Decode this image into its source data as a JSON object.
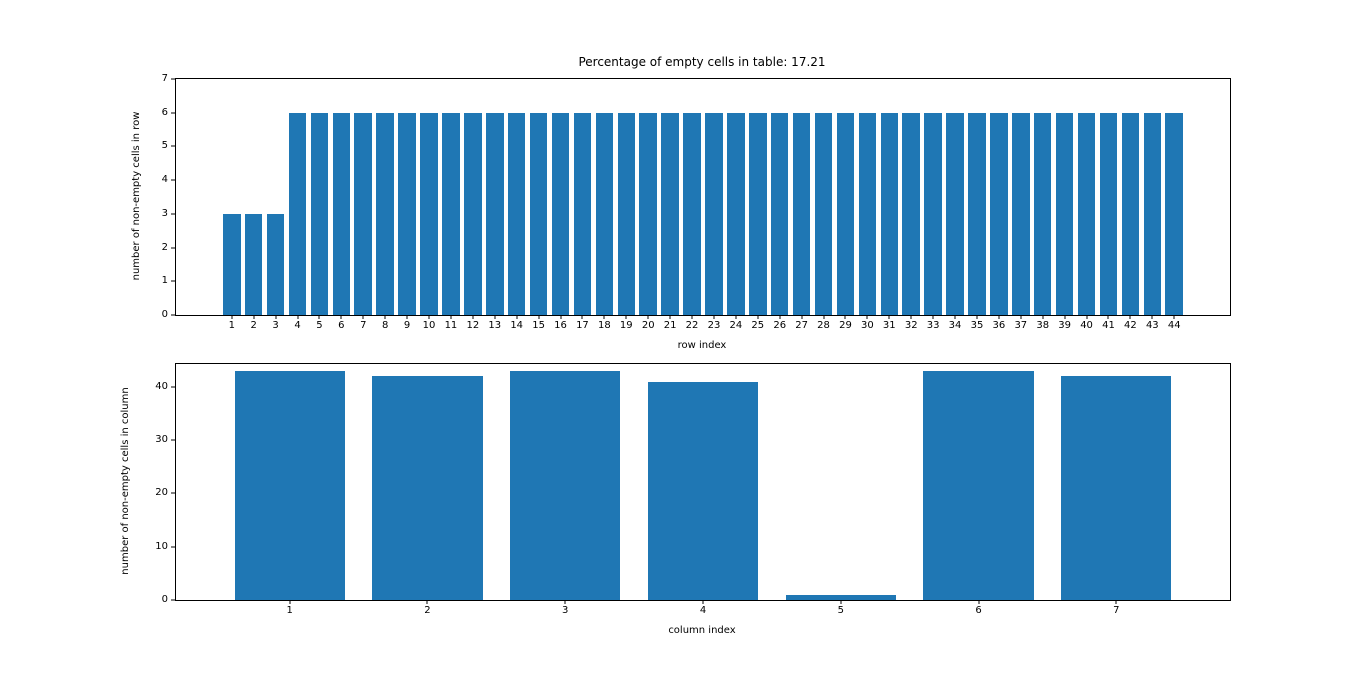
{
  "figure": {
    "background": "#ffffff",
    "text_color": "#000000",
    "spine_color": "#000000"
  },
  "chart_data": [
    {
      "type": "bar",
      "title": "Percentage of empty cells in table: 17.21",
      "xlabel": "row index",
      "ylabel": "number of non-empty cells in row",
      "categories": [
        1,
        2,
        3,
        4,
        5,
        6,
        7,
        8,
        9,
        10,
        11,
        12,
        13,
        14,
        15,
        16,
        17,
        18,
        19,
        20,
        21,
        22,
        23,
        24,
        25,
        26,
        27,
        28,
        29,
        30,
        31,
        32,
        33,
        34,
        35,
        36,
        37,
        38,
        39,
        40,
        41,
        42,
        43,
        44
      ],
      "values": [
        3,
        3,
        3,
        6,
        6,
        6,
        6,
        6,
        6,
        6,
        6,
        6,
        6,
        6,
        6,
        6,
        6,
        6,
        6,
        6,
        6,
        6,
        6,
        6,
        6,
        6,
        6,
        6,
        6,
        6,
        6,
        6,
        6,
        6,
        6,
        6,
        6,
        6,
        6,
        6,
        6,
        6,
        6,
        6
      ],
      "ylim": [
        0,
        7
      ],
      "yticks": [
        0,
        1,
        2,
        3,
        4,
        5,
        6,
        7
      ],
      "bar_color": "#1f77b4",
      "bar_width_ratio": 0.8,
      "grid": false,
      "legend": null
    },
    {
      "type": "bar",
      "title": "",
      "xlabel": "column index",
      "ylabel": "number of non-empty cells in column",
      "categories": [
        1,
        2,
        3,
        4,
        5,
        6,
        7
      ],
      "values": [
        43,
        42,
        43,
        41,
        1,
        43,
        42
      ],
      "ylim": [
        0,
        44.3
      ],
      "yticks": [
        0,
        10,
        20,
        30,
        40
      ],
      "bar_color": "#1f77b4",
      "bar_width_ratio": 0.8,
      "grid": false,
      "legend": null
    }
  ]
}
